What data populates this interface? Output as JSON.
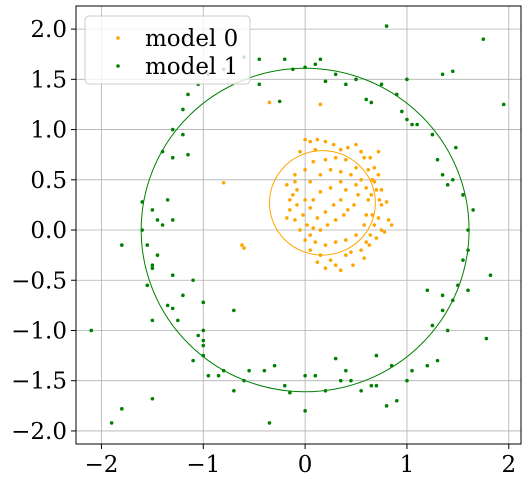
{
  "chart_data": {
    "type": "scatter",
    "title": "",
    "xlabel": "",
    "ylabel": "",
    "xlim": [
      -2.25,
      2.12
    ],
    "ylim": [
      -2.13,
      2.23
    ],
    "xticks": [
      -2,
      -1,
      0,
      1,
      2
    ],
    "yticks": [
      -2.0,
      -1.5,
      -1.0,
      -0.5,
      0.0,
      0.5,
      1.0,
      1.5,
      2.0
    ],
    "xtick_labels": [
      "−2",
      "−1",
      "0",
      "1",
      "2"
    ],
    "ytick_labels": [
      "−2.0",
      "−1.5",
      "−1.0",
      "−0.5",
      "0.0",
      "0.5",
      "1.0",
      "1.5",
      "2.0"
    ],
    "grid": true,
    "legend_position": "upper left",
    "series": [
      {
        "name": "model 0",
        "color": "#ffa500",
        "circle": {
          "cx": 0.17,
          "cy": 0.27,
          "r": 0.52
        },
        "points": [
          [
            0.0,
            0.9
          ],
          [
            0.05,
            0.88
          ],
          [
            0.12,
            0.9
          ],
          [
            0.2,
            0.88
          ],
          [
            0.28,
            0.85
          ],
          [
            -0.05,
            0.78
          ],
          [
            0.1,
            0.8
          ],
          [
            0.35,
            0.8
          ],
          [
            0.42,
            0.82
          ],
          [
            0.5,
            0.85
          ],
          [
            0.58,
            0.72
          ],
          [
            0.64,
            0.72
          ],
          [
            0.68,
            0.62
          ],
          [
            0.72,
            0.55
          ],
          [
            0.7,
            0.4
          ],
          [
            0.73,
            0.3
          ],
          [
            0.75,
            0.25
          ],
          [
            0.72,
            0.12
          ],
          [
            0.75,
            0.0
          ],
          [
            0.7,
            -0.08
          ],
          [
            0.6,
            -0.12
          ],
          [
            0.55,
            -0.2
          ],
          [
            0.45,
            -0.22
          ],
          [
            0.4,
            -0.25
          ],
          [
            0.47,
            -0.35
          ],
          [
            0.35,
            -0.4
          ],
          [
            0.25,
            -0.3
          ],
          [
            0.15,
            -0.25
          ],
          [
            0.05,
            -0.2
          ],
          [
            0.0,
            -0.1
          ],
          [
            -0.05,
            0.0
          ],
          [
            -0.1,
            0.1
          ],
          [
            -0.15,
            0.2
          ],
          [
            -0.12,
            0.35
          ],
          [
            -0.18,
            0.45
          ],
          [
            -0.1,
            0.55
          ],
          [
            0.0,
            0.6
          ],
          [
            0.08,
            0.68
          ],
          [
            0.2,
            0.7
          ],
          [
            0.3,
            0.72
          ],
          [
            0.4,
            0.7
          ],
          [
            0.5,
            0.62
          ],
          [
            0.55,
            0.5
          ],
          [
            0.6,
            0.42
          ],
          [
            0.62,
            0.3
          ],
          [
            0.6,
            0.15
          ],
          [
            0.58,
            0.05
          ],
          [
            0.5,
            -0.05
          ],
          [
            0.4,
            -0.1
          ],
          [
            0.3,
            -0.12
          ],
          [
            0.2,
            -0.15
          ],
          [
            0.1,
            -0.12
          ],
          [
            0.05,
            -0.05
          ],
          [
            0.02,
            0.05
          ],
          [
            -0.02,
            0.15
          ],
          [
            0.0,
            0.3
          ],
          [
            -0.08,
            0.4
          ],
          [
            -0.1,
            0.48
          ],
          [
            0.05,
            0.48
          ],
          [
            0.15,
            0.55
          ],
          [
            0.25,
            0.6
          ],
          [
            0.35,
            0.58
          ],
          [
            0.45,
            0.55
          ],
          [
            0.5,
            0.45
          ],
          [
            0.52,
            0.35
          ],
          [
            0.48,
            0.25
          ],
          [
            0.42,
            0.2
          ],
          [
            0.38,
            0.15
          ],
          [
            0.3,
            0.1
          ],
          [
            0.22,
            0.05
          ],
          [
            0.15,
            0.0
          ],
          [
            0.08,
            0.02
          ],
          [
            0.12,
            0.12
          ],
          [
            0.2,
            0.18
          ],
          [
            0.28,
            0.25
          ],
          [
            0.35,
            0.3
          ],
          [
            0.4,
            0.4
          ],
          [
            0.35,
            0.48
          ],
          [
            0.25,
            0.42
          ],
          [
            0.15,
            0.38
          ],
          [
            0.08,
            0.3
          ],
          [
            0.05,
            0.22
          ],
          [
            -0.08,
            0.25
          ],
          [
            -0.15,
            0.3
          ],
          [
            -0.18,
            0.12
          ],
          [
            0.62,
            0.6
          ],
          [
            0.66,
            0.5
          ],
          [
            0.68,
            0.48
          ],
          [
            0.65,
            0.35
          ],
          [
            0.66,
            0.15
          ],
          [
            0.68,
            0.05
          ],
          [
            0.64,
            -0.05
          ],
          [
            0.63,
            -0.15
          ],
          [
            0.58,
            -0.28
          ],
          [
            0.3,
            -0.35
          ],
          [
            0.2,
            -0.38
          ],
          [
            0.12,
            -0.32
          ],
          [
            0.75,
            0.4
          ],
          [
            0.8,
            0.28
          ],
          [
            0.82,
            0.1
          ],
          [
            0.85,
            0.05
          ],
          [
            0.78,
            -0.02
          ],
          [
            0.72,
            0.78
          ],
          [
            0.55,
            0.78
          ],
          [
            -0.62,
            -0.15
          ],
          [
            -0.6,
            -0.18
          ],
          [
            -0.8,
            0.47
          ],
          [
            -0.35,
            1.27
          ],
          [
            0.15,
            1.25
          ]
        ]
      },
      {
        "name": "model 1",
        "color": "#008000",
        "circle": {
          "cx": 0.0,
          "cy": 0.0,
          "r": 1.61
        },
        "points": [
          [
            0.8,
            2.03
          ],
          [
            -0.6,
            1.72
          ],
          [
            -0.45,
            1.7
          ],
          [
            0.1,
            1.65
          ],
          [
            0.3,
            1.55
          ],
          [
            0.4,
            1.45
          ],
          [
            0.5,
            1.5
          ],
          [
            0.75,
            1.45
          ],
          [
            1.0,
            1.5
          ],
          [
            1.45,
            1.58
          ],
          [
            1.35,
            1.55
          ],
          [
            1.95,
            1.25
          ],
          [
            1.75,
            1.9
          ],
          [
            -0.8,
            1.6
          ],
          [
            -0.95,
            1.55
          ],
          [
            -1.15,
            1.35
          ],
          [
            -1.3,
            1.0
          ],
          [
            -1.2,
            0.95
          ],
          [
            -1.4,
            0.78
          ],
          [
            -1.3,
            0.72
          ],
          [
            -1.15,
            0.75
          ],
          [
            -1.6,
            0.28
          ],
          [
            -1.5,
            0.2
          ],
          [
            -1.45,
            0.1
          ],
          [
            -1.3,
            0.1
          ],
          [
            -1.8,
            -0.15
          ],
          [
            -1.55,
            -0.15
          ],
          [
            -1.45,
            -0.25
          ],
          [
            -1.5,
            -0.35
          ],
          [
            -1.3,
            -0.45
          ],
          [
            -1.1,
            -0.5
          ],
          [
            -1.2,
            -0.65
          ],
          [
            -1.35,
            -0.75
          ],
          [
            -1.3,
            -0.78
          ],
          [
            -1.25,
            -0.9
          ],
          [
            -1.0,
            -1.0
          ],
          [
            -0.7,
            -0.8
          ],
          [
            -1.0,
            -1.15
          ],
          [
            -1.0,
            -1.25
          ],
          [
            -1.1,
            -1.3
          ],
          [
            -0.95,
            -1.45
          ],
          [
            -0.8,
            -1.4
          ],
          [
            -0.85,
            -1.45
          ],
          [
            -0.6,
            -1.5
          ],
          [
            -0.55,
            -1.4
          ],
          [
            -0.3,
            -1.35
          ],
          [
            -0.4,
            -1.4
          ],
          [
            -0.2,
            -1.55
          ],
          [
            0.0,
            -1.45
          ],
          [
            0.1,
            -1.45
          ],
          [
            0.3,
            -1.28
          ],
          [
            0.4,
            -1.4
          ],
          [
            0.45,
            -1.5
          ],
          [
            0.55,
            -1.6
          ],
          [
            0.65,
            -1.55
          ],
          [
            0.7,
            -1.55
          ],
          [
            0.8,
            -1.75
          ],
          [
            0.9,
            -1.7
          ],
          [
            1.05,
            -1.4
          ],
          [
            1.0,
            -1.5
          ],
          [
            1.2,
            -1.35
          ],
          [
            1.3,
            -1.3
          ],
          [
            1.4,
            -1.0
          ],
          [
            1.25,
            -0.95
          ],
          [
            1.35,
            -0.8
          ],
          [
            1.45,
            -0.7
          ],
          [
            1.5,
            -0.55
          ],
          [
            1.6,
            -0.6
          ],
          [
            1.55,
            -0.3
          ],
          [
            1.6,
            -0.2
          ],
          [
            1.6,
            0.0
          ],
          [
            1.65,
            0.2
          ],
          [
            1.55,
            0.35
          ],
          [
            1.4,
            0.45
          ],
          [
            1.35,
            0.55
          ],
          [
            1.3,
            0.7
          ],
          [
            1.25,
            0.95
          ],
          [
            1.05,
            1.05
          ],
          [
            1.0,
            1.1
          ],
          [
            0.95,
            1.18
          ],
          [
            -1.0,
            -0.72
          ],
          [
            -1.5,
            -0.38
          ],
          [
            -1.6,
            0.0
          ],
          [
            1.82,
            -0.45
          ],
          [
            1.78,
            -1.08
          ],
          [
            -1.8,
            -1.78
          ],
          [
            -1.9,
            -1.92
          ],
          [
            -1.5,
            -1.68
          ],
          [
            -2.1,
            -1.0
          ],
          [
            -0.35,
            -1.92
          ],
          [
            0.0,
            -1.8
          ],
          [
            0.2,
            -1.6
          ],
          [
            0.85,
            -1.35
          ],
          [
            0.7,
            -1.25
          ],
          [
            0.35,
            -1.5
          ],
          [
            -0.15,
            -1.62
          ],
          [
            -0.7,
            -1.6
          ],
          [
            0.0,
            1.62
          ],
          [
            0.2,
            1.48
          ],
          [
            -0.2,
            1.7
          ],
          [
            0.15,
            1.7
          ],
          [
            -0.12,
            1.6
          ],
          [
            -0.25,
            1.28
          ],
          [
            -0.45,
            1.45
          ],
          [
            -1.05,
            1.45
          ],
          [
            -1.2,
            1.2
          ],
          [
            -1.35,
            0.3
          ],
          [
            -1.4,
            0.05
          ],
          [
            -1.55,
            -0.55
          ],
          [
            -1.5,
            -0.9
          ],
          [
            -1.05,
            -1.05
          ],
          [
            -1.0,
            -1.1
          ],
          [
            0.6,
            1.3
          ],
          [
            0.65,
            1.27
          ],
          [
            0.9,
            1.35
          ],
          [
            1.1,
            1.05
          ],
          [
            1.48,
            0.82
          ],
          [
            1.45,
            0.5
          ],
          [
            1.35,
            -0.65
          ],
          [
            1.2,
            -0.6
          ]
        ]
      }
    ]
  }
}
